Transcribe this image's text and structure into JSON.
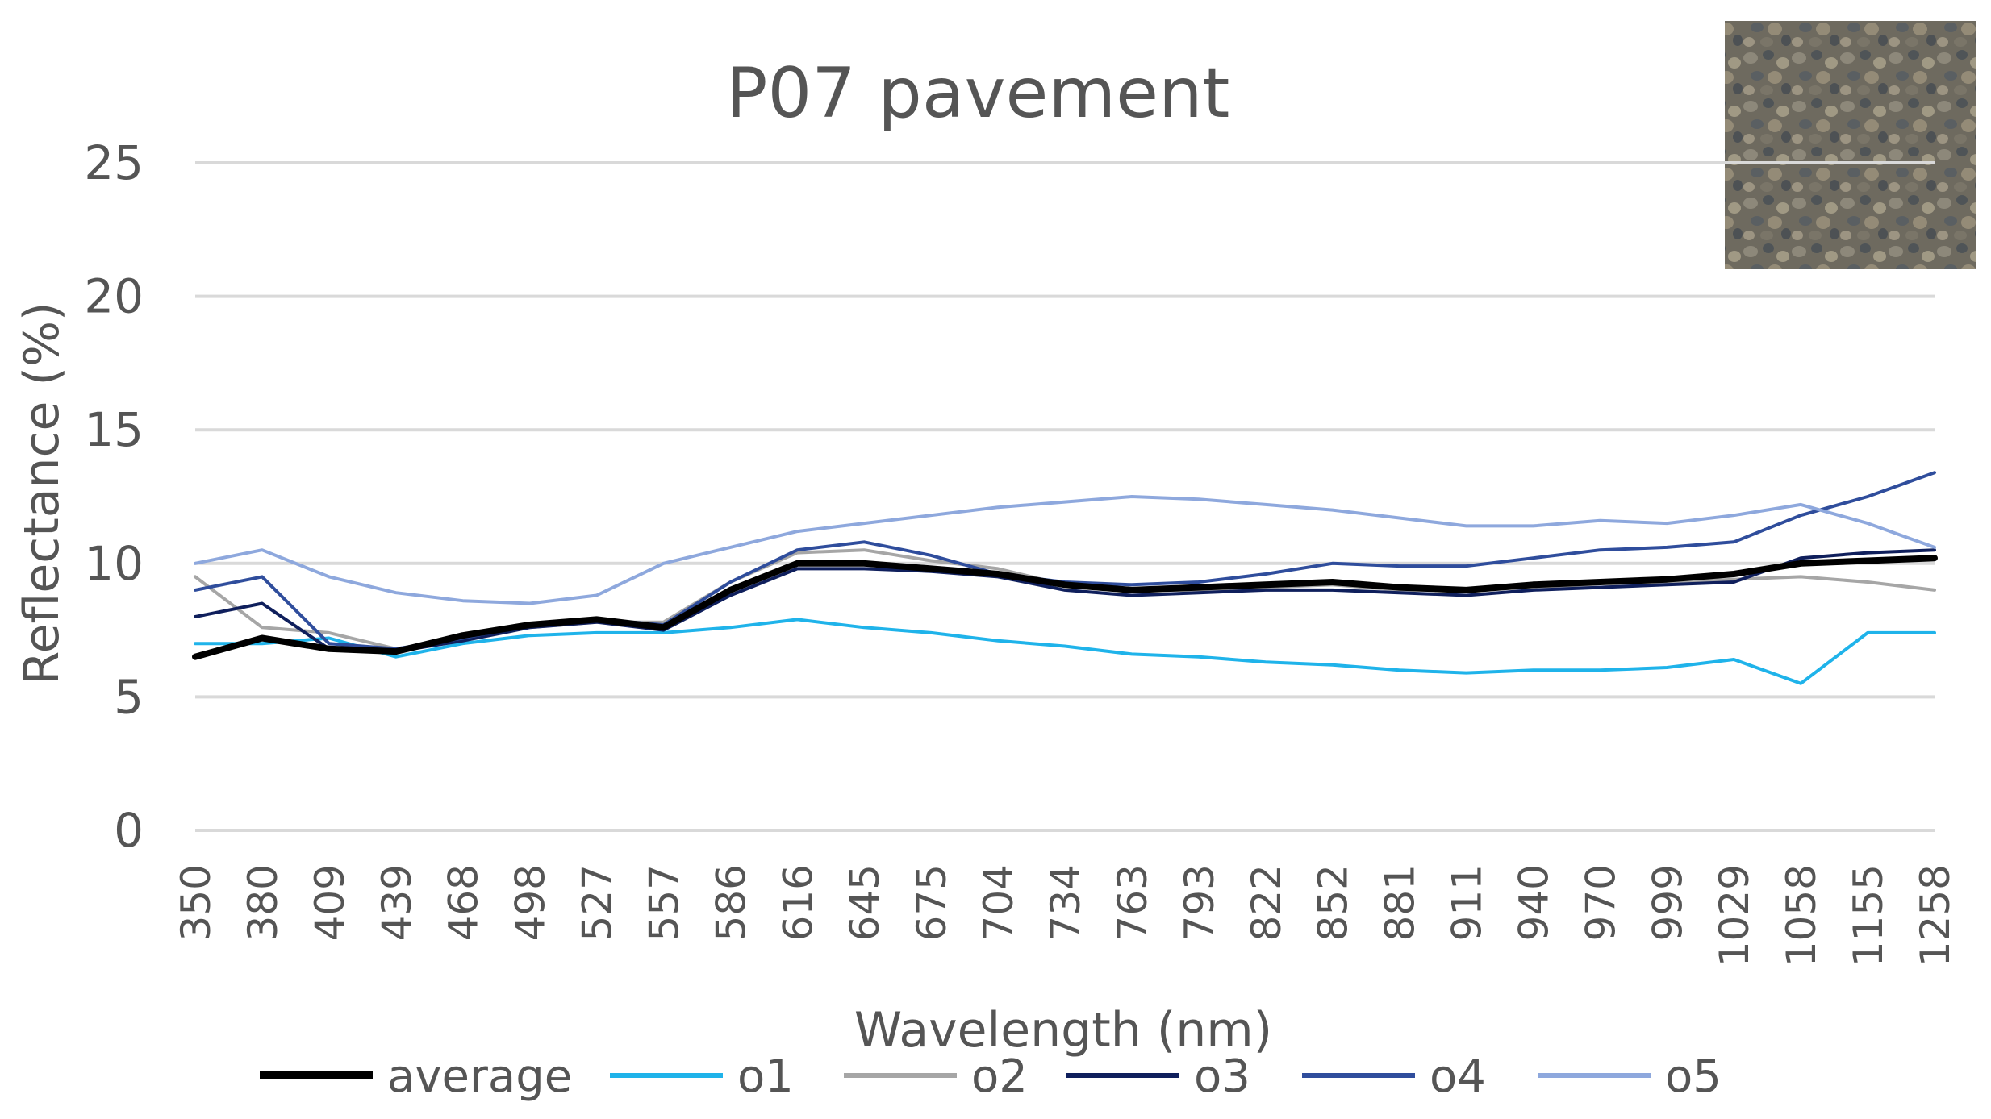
{
  "chart_data": {
    "type": "line",
    "title": "P07 pavement",
    "xlabel": "Wavelength (nm)",
    "ylabel": "Reflectance (%)",
    "ylim": [
      0,
      25
    ],
    "yticks": [
      0,
      5,
      10,
      15,
      20,
      25
    ],
    "grid": true,
    "legend_position": "bottom",
    "categories": [
      "350",
      "380",
      "409",
      "439",
      "468",
      "498",
      "527",
      "557",
      "586",
      "616",
      "645",
      "675",
      "704",
      "734",
      "763",
      "793",
      "822",
      "852",
      "881",
      "911",
      "940",
      "970",
      "999",
      "1029",
      "1058",
      "1155",
      "1258"
    ],
    "series": [
      {
        "name": "average",
        "color": "#000000",
        "width": 8,
        "values": [
          6.5,
          7.2,
          6.8,
          6.7,
          7.3,
          7.7,
          7.9,
          7.6,
          9.0,
          10.0,
          10.0,
          9.8,
          9.6,
          9.2,
          9.0,
          9.1,
          9.2,
          9.3,
          9.1,
          9.0,
          9.2,
          9.3,
          9.4,
          9.6,
          10.0,
          10.1,
          10.2
        ]
      },
      {
        "name": "o1",
        "color": "#1fb3ea",
        "width": 4,
        "values": [
          7.0,
          7.0,
          7.2,
          6.5,
          7.0,
          7.3,
          7.4,
          7.4,
          7.6,
          7.9,
          7.6,
          7.4,
          7.1,
          6.9,
          6.6,
          6.5,
          6.3,
          6.2,
          6.0,
          5.9,
          6.0,
          6.0,
          6.1,
          6.4,
          5.5,
          7.4,
          7.4
        ]
      },
      {
        "name": "o2",
        "color": "#a6a6a6",
        "width": 4,
        "values": [
          9.5,
          7.6,
          7.4,
          6.8,
          7.2,
          7.6,
          7.8,
          7.8,
          9.3,
          10.4,
          10.5,
          10.1,
          9.8,
          9.2,
          9.0,
          9.0,
          9.1,
          9.2,
          9.0,
          9.0,
          9.1,
          9.1,
          9.3,
          9.4,
          9.5,
          9.3,
          9.0
        ]
      },
      {
        "name": "o3",
        "color": "#0f1f5c",
        "width": 4,
        "values": [
          8.0,
          8.5,
          6.8,
          6.7,
          7.1,
          7.6,
          7.8,
          7.5,
          8.8,
          9.8,
          9.8,
          9.7,
          9.5,
          9.0,
          8.8,
          8.9,
          9.0,
          9.0,
          8.9,
          8.8,
          9.0,
          9.1,
          9.2,
          9.3,
          10.2,
          10.4,
          10.5
        ]
      },
      {
        "name": "o4",
        "color": "#2f4d9c",
        "width": 4,
        "values": [
          9.0,
          9.5,
          7.0,
          6.8,
          7.2,
          7.7,
          7.9,
          7.7,
          9.3,
          10.5,
          10.8,
          10.3,
          9.6,
          9.3,
          9.2,
          9.3,
          9.6,
          10.0,
          9.9,
          9.9,
          10.2,
          10.5,
          10.6,
          10.8,
          11.8,
          12.5,
          13.4
        ]
      },
      {
        "name": "o5",
        "color": "#8ea8dd",
        "width": 4,
        "values": [
          10.0,
          10.5,
          9.5,
          8.9,
          8.6,
          8.5,
          8.8,
          10.0,
          10.6,
          11.2,
          11.5,
          11.8,
          12.1,
          12.3,
          12.5,
          12.4,
          12.2,
          12.0,
          11.7,
          11.4,
          11.4,
          11.6,
          11.5,
          11.8,
          12.2,
          11.5,
          10.6
        ]
      }
    ]
  }
}
